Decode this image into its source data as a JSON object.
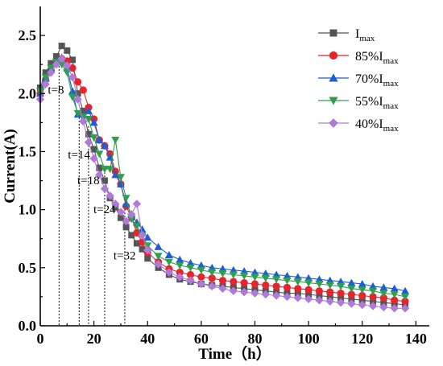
{
  "chart_data": {
    "type": "line",
    "xlabel": "Time（h）",
    "ylabel": "Current(A)",
    "xlim": [
      0,
      145
    ],
    "ylim": [
      0,
      2.75
    ],
    "xticks": [
      0,
      20,
      40,
      60,
      80,
      100,
      120,
      140
    ],
    "yticks": [
      0.0,
      0.5,
      1.0,
      1.5,
      2.0,
      2.5
    ],
    "xtick_labels": [
      "0",
      "20",
      "40",
      "60",
      "80",
      "100",
      "120",
      "140"
    ],
    "ytick_labels": [
      "0.0",
      "0.5",
      "1.0",
      "1.5",
      "2.0",
      "2.5"
    ],
    "legend_position": "top-right",
    "grid": false,
    "series": [
      {
        "name": "Imax",
        "label_main": "I",
        "label_sub": "max",
        "color": "#555555",
        "marker": "square",
        "x": [
          0,
          2,
          4,
          6,
          8,
          10,
          12,
          14,
          16,
          18,
          20,
          22,
          24,
          26,
          28,
          30,
          32,
          34,
          36,
          38,
          40,
          44,
          48,
          52,
          56,
          60,
          64,
          68,
          72,
          76,
          80,
          84,
          88,
          92,
          96,
          100,
          104,
          108,
          112,
          116,
          120,
          124,
          128,
          132,
          136
        ],
        "y": [
          2.05,
          2.18,
          2.26,
          2.32,
          2.41,
          2.37,
          2.29,
          2.0,
          1.85,
          1.65,
          1.52,
          1.36,
          1.25,
          1.1,
          1.02,
          0.93,
          0.85,
          0.78,
          0.71,
          0.66,
          0.58,
          0.5,
          0.44,
          0.4,
          0.38,
          0.36,
          0.35,
          0.34,
          0.33,
          0.32,
          0.31,
          0.3,
          0.29,
          0.28,
          0.28,
          0.27,
          0.26,
          0.25,
          0.24,
          0.23,
          0.22,
          0.21,
          0.2,
          0.19,
          0.18
        ]
      },
      {
        "name": "85%Imax",
        "label_main": "85%I",
        "label_sub": "max",
        "color": "#e8232b",
        "marker": "circle",
        "x": [
          0,
          2,
          4,
          6,
          8,
          10,
          12,
          14,
          16,
          18,
          20,
          22,
          24,
          26,
          28,
          30,
          32,
          34,
          36,
          38,
          40,
          44,
          48,
          52,
          56,
          60,
          64,
          68,
          72,
          76,
          80,
          84,
          88,
          92,
          96,
          100,
          104,
          108,
          112,
          116,
          120,
          124,
          128,
          132,
          136
        ],
        "y": [
          2.0,
          2.12,
          2.2,
          2.27,
          2.3,
          2.28,
          2.22,
          2.1,
          2.03,
          1.88,
          1.78,
          1.6,
          1.55,
          1.48,
          1.33,
          1.22,
          1.03,
          0.93,
          0.8,
          0.72,
          0.63,
          0.55,
          0.49,
          0.46,
          0.44,
          0.42,
          0.41,
          0.39,
          0.38,
          0.37,
          0.36,
          0.35,
          0.34,
          0.33,
          0.32,
          0.31,
          0.3,
          0.29,
          0.28,
          0.27,
          0.26,
          0.25,
          0.24,
          0.22,
          0.21
        ]
      },
      {
        "name": "70%Imax",
        "label_main": "70%I",
        "label_sub": "max",
        "color": "#1a5fd4",
        "marker": "triangle-up",
        "x": [
          0,
          2,
          4,
          6,
          8,
          10,
          12,
          14,
          16,
          18,
          20,
          22,
          24,
          26,
          28,
          30,
          32,
          34,
          36,
          38,
          40,
          44,
          48,
          52,
          56,
          60,
          64,
          68,
          72,
          76,
          80,
          84,
          88,
          92,
          96,
          100,
          104,
          108,
          112,
          116,
          120,
          124,
          128,
          132,
          136
        ],
        "y": [
          2.0,
          2.13,
          2.22,
          2.28,
          2.31,
          2.22,
          2.02,
          1.82,
          1.78,
          1.85,
          1.75,
          1.6,
          1.55,
          1.45,
          1.3,
          1.22,
          1.05,
          0.96,
          0.89,
          0.83,
          0.76,
          0.68,
          0.61,
          0.57,
          0.54,
          0.52,
          0.5,
          0.49,
          0.48,
          0.47,
          0.46,
          0.45,
          0.44,
          0.43,
          0.42,
          0.41,
          0.4,
          0.39,
          0.38,
          0.37,
          0.36,
          0.34,
          0.33,
          0.32,
          0.3
        ]
      },
      {
        "name": "55%Imax",
        "label_main": "55%I",
        "label_sub": "max",
        "color": "#2e9e4f",
        "marker": "triangle-down",
        "x": [
          0,
          2,
          4,
          6,
          8,
          10,
          12,
          14,
          16,
          18,
          20,
          22,
          24,
          26,
          28,
          30,
          32,
          34,
          36,
          38,
          40,
          44,
          48,
          52,
          56,
          60,
          64,
          68,
          72,
          76,
          80,
          84,
          88,
          92,
          96,
          100,
          104,
          108,
          112,
          116,
          120,
          124,
          128,
          132,
          136
        ],
        "y": [
          2.02,
          2.14,
          2.22,
          2.27,
          2.25,
          2.18,
          1.97,
          1.83,
          1.8,
          1.78,
          1.62,
          1.48,
          1.35,
          1.35,
          1.6,
          1.28,
          1.1,
          0.92,
          0.86,
          0.78,
          0.69,
          0.6,
          0.55,
          0.52,
          0.5,
          0.48,
          0.46,
          0.45,
          0.44,
          0.43,
          0.42,
          0.41,
          0.4,
          0.39,
          0.38,
          0.37,
          0.36,
          0.35,
          0.34,
          0.32,
          0.31,
          0.3,
          0.28,
          0.27,
          0.25
        ]
      },
      {
        "name": "40%Imax",
        "label_main": "40%I",
        "label_sub": "max",
        "color": "#b07ad8",
        "marker": "diamond",
        "x": [
          0,
          2,
          4,
          6,
          8,
          10,
          12,
          14,
          16,
          18,
          20,
          22,
          24,
          26,
          28,
          30,
          32,
          34,
          36,
          38,
          40,
          44,
          48,
          52,
          56,
          60,
          64,
          68,
          72,
          76,
          80,
          84,
          88,
          92,
          96,
          100,
          104,
          108,
          112,
          116,
          120,
          124,
          128,
          132,
          136
        ],
        "y": [
          1.95,
          2.08,
          2.18,
          2.25,
          2.3,
          2.24,
          2.14,
          1.95,
          1.76,
          1.58,
          1.44,
          1.3,
          1.18,
          1.12,
          1.05,
          0.98,
          0.9,
          0.96,
          1.05,
          0.78,
          0.65,
          0.53,
          0.46,
          0.42,
          0.39,
          0.36,
          0.34,
          0.32,
          0.3,
          0.29,
          0.28,
          0.27,
          0.26,
          0.25,
          0.24,
          0.23,
          0.22,
          0.21,
          0.2,
          0.19,
          0.18,
          0.17,
          0.16,
          0.15,
          0.15
        ]
      }
    ],
    "annotations": [
      {
        "label": "t=8",
        "x": 7,
        "y": 2.32,
        "label_y": 2.0
      },
      {
        "label": "t=14",
        "x": 14.5,
        "y": 1.85,
        "label_y": 1.44
      },
      {
        "label": "t=18",
        "x": 18,
        "y": 1.72,
        "label_y": 1.22
      },
      {
        "label": "t=24",
        "x": 24,
        "y": 1.35,
        "label_y": 0.97
      },
      {
        "label": "t=32",
        "x": 31.5,
        "y": 1.03,
        "label_y": 0.57
      }
    ]
  }
}
